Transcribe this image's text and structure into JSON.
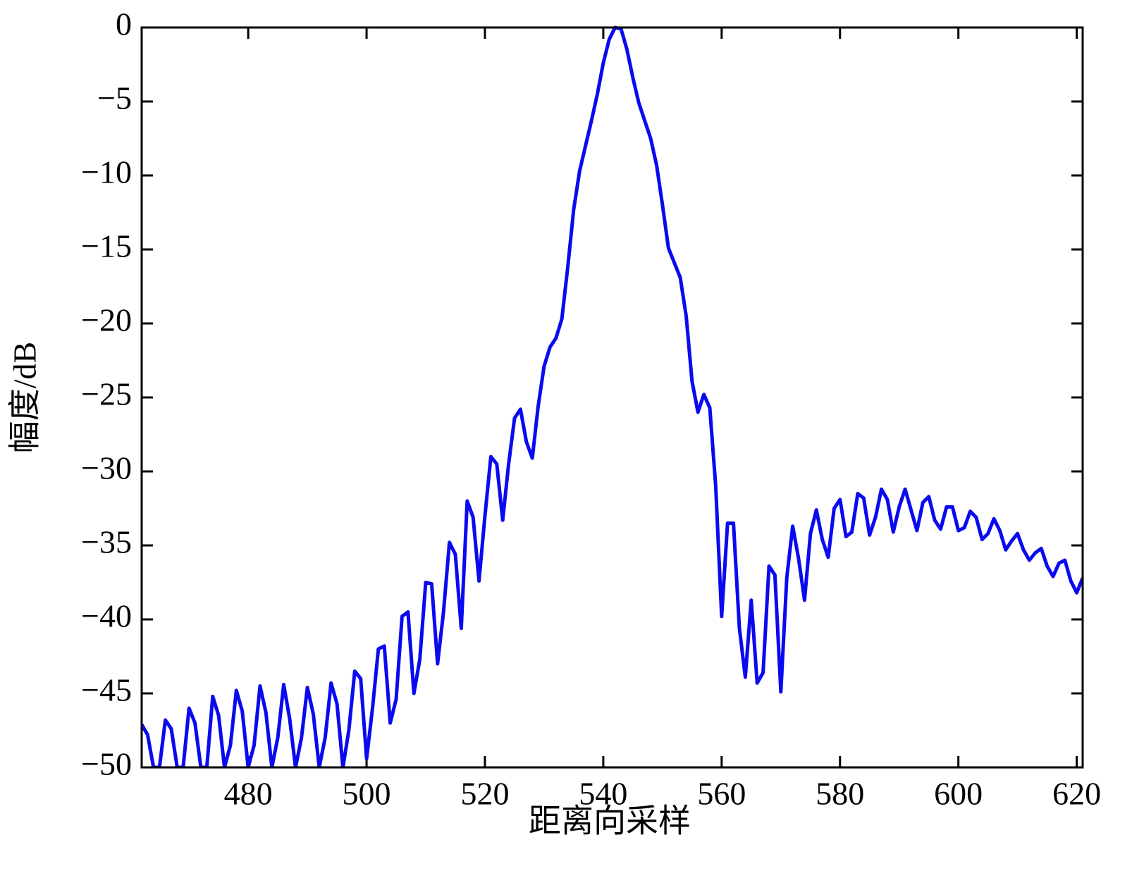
{
  "chart_data": {
    "type": "line",
    "xlabel": "距离向采样",
    "ylabel": "幅度/dB",
    "xlim": [
      462,
      621
    ],
    "ylim": [
      -50,
      0
    ],
    "xticks": [
      480,
      500,
      520,
      540,
      560,
      580,
      600,
      620
    ],
    "yticks": [
      {
        "value": -50,
        "label": "−50"
      },
      {
        "value": -45,
        "label": "−45"
      },
      {
        "value": -40,
        "label": "−40"
      },
      {
        "value": -35,
        "label": "−35"
      },
      {
        "value": -30,
        "label": "−30"
      },
      {
        "value": -25,
        "label": "−25"
      },
      {
        "value": -20,
        "label": "−20"
      },
      {
        "value": -15,
        "label": "−15"
      },
      {
        "value": -10,
        "label": "−10"
      },
      {
        "value": -5,
        "label": "−5"
      },
      0
    ],
    "series": [
      {
        "color": "#0a0af0",
        "x": [
          462,
          463,
          464,
          465,
          466,
          467,
          468,
          469,
          470,
          471,
          472,
          473,
          474,
          475,
          476,
          477,
          478,
          479,
          480,
          481,
          482,
          483,
          484,
          485,
          486,
          487,
          488,
          489,
          490,
          491,
          492,
          493,
          494,
          495,
          496,
          497,
          498,
          499,
          500,
          501,
          502,
          503,
          504,
          505,
          506,
          507,
          508,
          509,
          510,
          511,
          512,
          513,
          514,
          515,
          516,
          517,
          518,
          519,
          520,
          521,
          522,
          523,
          524,
          525,
          526,
          527,
          528,
          529,
          530,
          531,
          532,
          533,
          534,
          535,
          536,
          537,
          538,
          539,
          540,
          541,
          542,
          543,
          544,
          545,
          546,
          547,
          548,
          549,
          550,
          551,
          552,
          553,
          554,
          555,
          556,
          557,
          558,
          559,
          560,
          561,
          562,
          563,
          564,
          565,
          566,
          567,
          568,
          569,
          570,
          571,
          572,
          573,
          574,
          575,
          576,
          577,
          578,
          579,
          580,
          581,
          582,
          583,
          584,
          585,
          586,
          587,
          588,
          589,
          590,
          591,
          592,
          593,
          594,
          595,
          596,
          597,
          598,
          599,
          600,
          601,
          602,
          603,
          604,
          605,
          606,
          607,
          608,
          609,
          610,
          611,
          612,
          613,
          614,
          615,
          616,
          617,
          618,
          619,
          620,
          621
        ],
        "values": [
          -47.1,
          -47.8,
          -50,
          -50,
          -46.8,
          -47.4,
          -50,
          -50,
          -46,
          -47,
          -50,
          -50,
          -45.2,
          -46.5,
          -50,
          -48.5,
          -44.8,
          -46.2,
          -50,
          -48.5,
          -44.5,
          -46.3,
          -50,
          -48,
          -44.4,
          -46.7,
          -50,
          -48,
          -44.6,
          -46.4,
          -50,
          -48,
          -44.3,
          -45.7,
          -50,
          -47.5,
          -43.5,
          -44,
          -49.4,
          -46,
          -42,
          -41.8,
          -47,
          -45.4,
          -39.8,
          -39.5,
          -45,
          -42.7,
          -37.5,
          -37.6,
          -43,
          -39.5,
          -34.8,
          -35.6,
          -40.6,
          -32,
          -33.1,
          -37.4,
          -33,
          -29,
          -29.5,
          -33.3,
          -29.5,
          -26.4,
          -25.8,
          -28,
          -29.1,
          -25.6,
          -22.9,
          -21.6,
          -21,
          -19.7,
          -16.2,
          -12.3,
          -9.7,
          -8,
          -6.3,
          -4.5,
          -2.4,
          -0.8,
          0,
          -0.1,
          -1.5,
          -3.4,
          -5.1,
          -6.3,
          -7.5,
          -9.3,
          -12,
          -14.9,
          -15.9,
          -16.9,
          -19.5,
          -23.9,
          -26,
          -24.8,
          -25.7,
          -31,
          -39.8,
          -33.5,
          -33.5,
          -40.6,
          -43.9,
          -38.7,
          -44.3,
          -43.6,
          -36.4,
          -37,
          -44.9,
          -37.2,
          -33.7,
          -35.9,
          -38.7,
          -34.2,
          -32.6,
          -34.6,
          -35.8,
          -32.5,
          -31.9,
          -34.4,
          -34.1,
          -31.5,
          -31.8,
          -34.3,
          -33.1,
          -31.2,
          -31.9,
          -34.1,
          -32.4,
          -31.2,
          -32.6,
          -34,
          -32.1,
          -31.7,
          -33.3,
          -33.9,
          -32.4,
          -32.4,
          -34,
          -33.8,
          -32.7,
          -33.1,
          -34.6,
          -34.2,
          -33.2,
          -34,
          -35.3,
          -34.7,
          -34.2,
          -35.3,
          -36,
          -35.5,
          -35.2,
          -36.4,
          -37.1,
          -36.2,
          -36,
          -37.4,
          -38.2,
          -37.2
        ]
      }
    ]
  }
}
